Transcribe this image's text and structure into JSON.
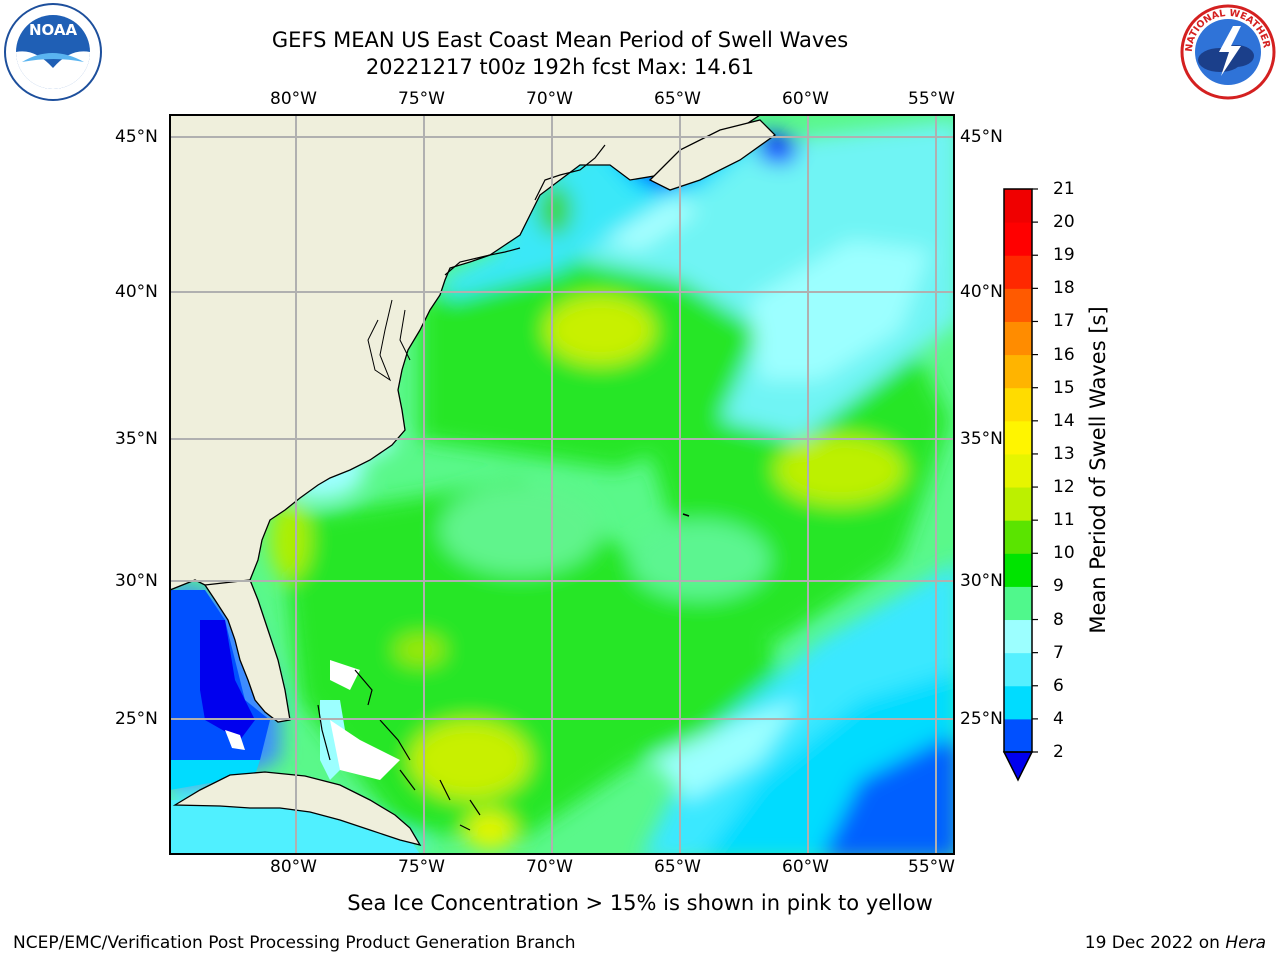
{
  "header": {
    "title": "GEFS MEAN US East Coast Mean Period of Swell Waves",
    "subtitle": "20221217 t00z 192h fcst   Max: 14.61"
  },
  "logos": {
    "left_label": "NOAA",
    "right_label": "NATIONAL WEATHER SERVICE"
  },
  "map": {
    "lon_labels": [
      "80°W",
      "75°W",
      "70°W",
      "65°W",
      "60°W",
      "55°W"
    ],
    "lat_labels": [
      "45°N",
      "40°N",
      "35°N",
      "30°N",
      "25°N"
    ],
    "colors": {
      "land": "#efefdc",
      "grid": "#b0b0b0",
      "coast": "#000000"
    }
  },
  "colorbar": {
    "title": "Mean Period of Swell Waves [s]",
    "ticks": [
      "2",
      "4",
      "6",
      "7",
      "8",
      "9",
      "10",
      "11",
      "12",
      "13",
      "14",
      "15",
      "16",
      "17",
      "18",
      "19",
      "20",
      "21"
    ],
    "colors": [
      "#0050ff",
      "#00dcff",
      "#55f0ff",
      "#9cffff",
      "#50f88c",
      "#00e400",
      "#5ae400",
      "#bcf000",
      "#e6f500",
      "#fff500",
      "#ffdc00",
      "#ffb400",
      "#ff8c00",
      "#ff5a00",
      "#ff2800",
      "#ff0000",
      "#f00000"
    ],
    "under_color": "#0000ee"
  },
  "caption": "Sea Ice Concentration > 15% is shown in pink to yellow",
  "footer": {
    "left": "NCEP/EMC/Verification Post Processing Product Generation Branch",
    "right_date": "19 Dec 2022 on",
    "right_host": "Hera"
  }
}
